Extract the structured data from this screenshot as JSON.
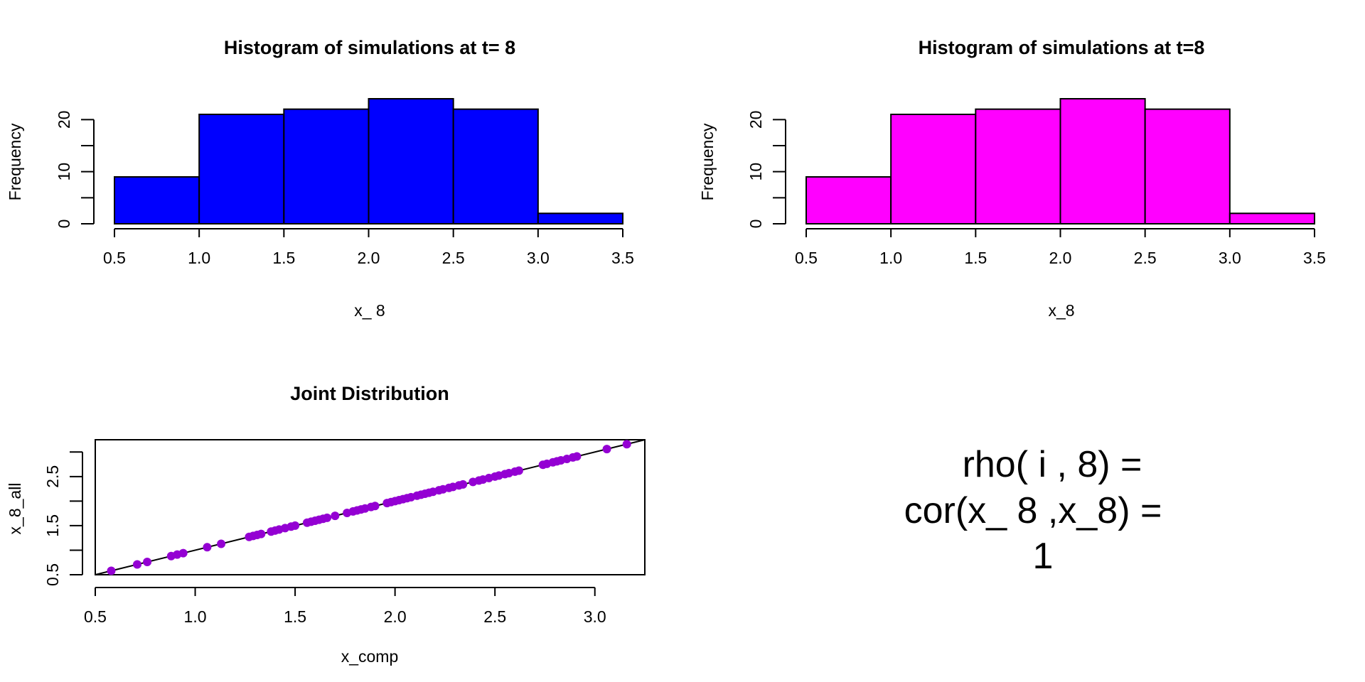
{
  "chart_data": [
    {
      "type": "bar",
      "title": "Histogram of simulations at t= 8",
      "xlabel": "x_ 8",
      "ylabel": "Frequency",
      "bins": [
        [
          0.5,
          1.0
        ],
        [
          1.0,
          1.5
        ],
        [
          1.5,
          2.0
        ],
        [
          2.0,
          2.5
        ],
        [
          2.5,
          3.0
        ],
        [
          3.0,
          3.5
        ]
      ],
      "values": [
        9,
        21,
        22,
        24,
        22,
        2
      ],
      "xlim": [
        0.5,
        3.5
      ],
      "ylim": [
        0,
        24
      ],
      "xticks": [
        0.5,
        1.0,
        1.5,
        2.0,
        2.5,
        3.0,
        3.5
      ],
      "xtick_labels": [
        "0.5",
        "1.0",
        "1.5",
        "2.0",
        "2.5",
        "3.0",
        "3.5"
      ],
      "yticks": [
        0,
        5,
        10,
        15,
        20
      ],
      "ytick_labels": [
        "0",
        "",
        "10",
        "",
        "20"
      ],
      "bar_color": "#0000ff"
    },
    {
      "type": "bar",
      "title": "Histogram of simulations at t=8",
      "xlabel": "x_8",
      "ylabel": "Frequency",
      "bins": [
        [
          0.5,
          1.0
        ],
        [
          1.0,
          1.5
        ],
        [
          1.5,
          2.0
        ],
        [
          2.0,
          2.5
        ],
        [
          2.5,
          3.0
        ],
        [
          3.0,
          3.5
        ]
      ],
      "values": [
        9,
        21,
        22,
        24,
        22,
        2
      ],
      "xlim": [
        0.5,
        3.5
      ],
      "ylim": [
        0,
        24
      ],
      "xticks": [
        0.5,
        1.0,
        1.5,
        2.0,
        2.5,
        3.0,
        3.5
      ],
      "xtick_labels": [
        "0.5",
        "1.0",
        "1.5",
        "2.0",
        "2.5",
        "3.0",
        "3.5"
      ],
      "yticks": [
        0,
        5,
        10,
        15,
        20
      ],
      "ytick_labels": [
        "0",
        "",
        "10",
        "",
        "20"
      ],
      "bar_color": "#ff00ff"
    },
    {
      "type": "scatter",
      "title": "Joint Distribution",
      "xlabel": "x_comp",
      "ylabel": "x_8_all",
      "xlim": [
        0.5,
        3.25
      ],
      "ylim": [
        0.5,
        3.25
      ],
      "xticks": [
        0.5,
        1.0,
        1.5,
        2.0,
        2.5,
        3.0
      ],
      "xtick_labels": [
        "0.5",
        "1.0",
        "1.5",
        "2.0",
        "2.5",
        "3.0"
      ],
      "yticks": [
        0.5,
        1.0,
        1.5,
        2.0,
        2.5,
        3.0
      ],
      "ytick_labels": [
        "0.5",
        "",
        "1.5",
        "",
        "2.5",
        ""
      ],
      "point_color": "#9400d3",
      "reference_line": {
        "intercept": 0,
        "slope": 1
      },
      "x": [
        0.58,
        0.71,
        0.76,
        0.88,
        0.91,
        0.94,
        1.06,
        1.13,
        1.27,
        1.29,
        1.31,
        1.33,
        1.38,
        1.4,
        1.42,
        1.45,
        1.48,
        1.5,
        1.56,
        1.58,
        1.6,
        1.62,
        1.64,
        1.66,
        1.7,
        1.76,
        1.79,
        1.81,
        1.83,
        1.85,
        1.88,
        1.9,
        1.96,
        1.98,
        2.0,
        2.02,
        2.04,
        2.06,
        2.08,
        2.11,
        2.13,
        2.15,
        2.17,
        2.19,
        2.22,
        2.24,
        2.27,
        2.29,
        2.32,
        2.34,
        2.39,
        2.42,
        2.44,
        2.47,
        2.5,
        2.52,
        2.55,
        2.57,
        2.6,
        2.62,
        2.74,
        2.76,
        2.79,
        2.81,
        2.83,
        2.86,
        2.89,
        2.91,
        3.06,
        3.16
      ],
      "y": [
        0.58,
        0.71,
        0.76,
        0.88,
        0.91,
        0.94,
        1.06,
        1.13,
        1.27,
        1.29,
        1.31,
        1.33,
        1.38,
        1.4,
        1.42,
        1.45,
        1.48,
        1.5,
        1.56,
        1.58,
        1.6,
        1.62,
        1.64,
        1.66,
        1.7,
        1.76,
        1.79,
        1.81,
        1.83,
        1.85,
        1.88,
        1.9,
        1.96,
        1.98,
        2.0,
        2.02,
        2.04,
        2.06,
        2.08,
        2.11,
        2.13,
        2.15,
        2.17,
        2.19,
        2.22,
        2.24,
        2.27,
        2.29,
        2.32,
        2.34,
        2.39,
        2.42,
        2.44,
        2.47,
        2.5,
        2.52,
        2.55,
        2.57,
        2.6,
        2.62,
        2.74,
        2.76,
        2.79,
        2.81,
        2.83,
        2.86,
        2.89,
        2.91,
        3.06,
        3.16
      ]
    }
  ],
  "rho_text": {
    "line1": "rho( i , 8) =",
    "line2": "cor(x_ 8 ,x_8) =",
    "line3": "1"
  }
}
